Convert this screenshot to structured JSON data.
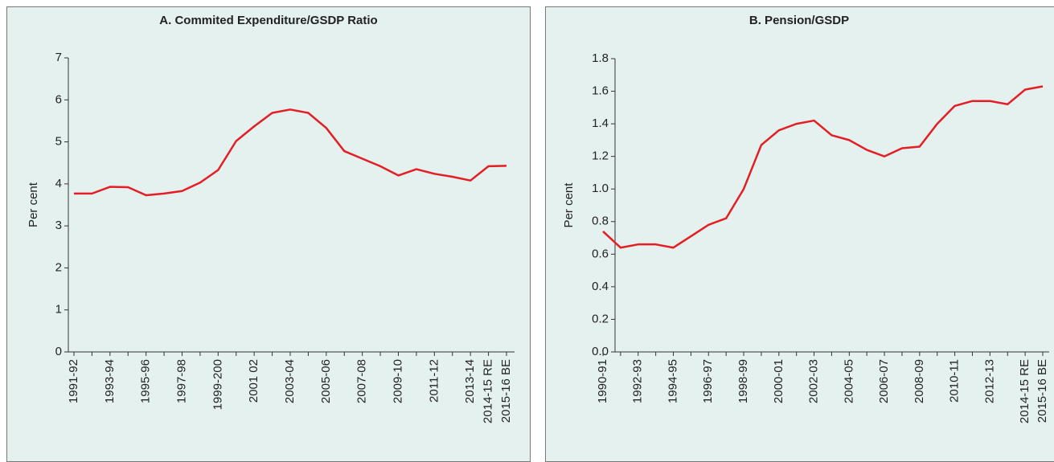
{
  "chart_data": [
    {
      "type": "line",
      "title": "A. Commited Expenditure/GSDP Ratio",
      "y_label": "Per cent",
      "color": "#e31e24",
      "categories": [
        "1991-92",
        null,
        "1993-94",
        null,
        "1995-96",
        null,
        "1997-98",
        null,
        "1999-200",
        null,
        "2001 02",
        null,
        "2003-04",
        null,
        "2005-06",
        null,
        "2007-08",
        null,
        "2009-10",
        null,
        "2011-12",
        null,
        "2013-14",
        "2014-15 RE",
        "2015-16 BE"
      ],
      "values": [
        3.77,
        3.77,
        3.93,
        3.92,
        3.73,
        3.77,
        3.83,
        4.03,
        4.33,
        5.02,
        5.37,
        5.69,
        5.77,
        5.69,
        5.33,
        4.78,
        4.6,
        4.42,
        4.2,
        4.35,
        4.24,
        4.17,
        4.08,
        4.42,
        4.43
      ],
      "ylim": [
        0,
        7
      ],
      "yticks": [
        0,
        1,
        2,
        3,
        4,
        5,
        6,
        7
      ]
    },
    {
      "type": "line",
      "title": "B. Pension/GSDP",
      "y_label": "Per cent",
      "color": "#e31e24",
      "categories": [
        "1990-91",
        null,
        "1992-93",
        null,
        "1994-95",
        null,
        "1996-97",
        null,
        "1998-99",
        null,
        "2000-01",
        null,
        "2002-03",
        null,
        "2004-05",
        null,
        "2006-07",
        null,
        "2008-09",
        null,
        "2010-11",
        null,
        "2012-13",
        null,
        "2014-15 RE",
        "2015-16 BE"
      ],
      "values": [
        0.74,
        0.64,
        0.66,
        0.66,
        0.64,
        0.71,
        0.78,
        0.82,
        1.0,
        1.27,
        1.36,
        1.4,
        1.42,
        1.33,
        1.3,
        1.24,
        1.2,
        1.25,
        1.26,
        1.4,
        1.51,
        1.54,
        1.54,
        1.52,
        1.61,
        1.63
      ],
      "ylim": [
        0,
        1.8
      ],
      "yticks": [
        {
          "value": 0,
          "label": "0.0"
        },
        0.2,
        0.4,
        0.6,
        0.8,
        {
          "value": 1,
          "label": "1.0"
        },
        1.2,
        1.4,
        1.6,
        1.8
      ]
    }
  ]
}
